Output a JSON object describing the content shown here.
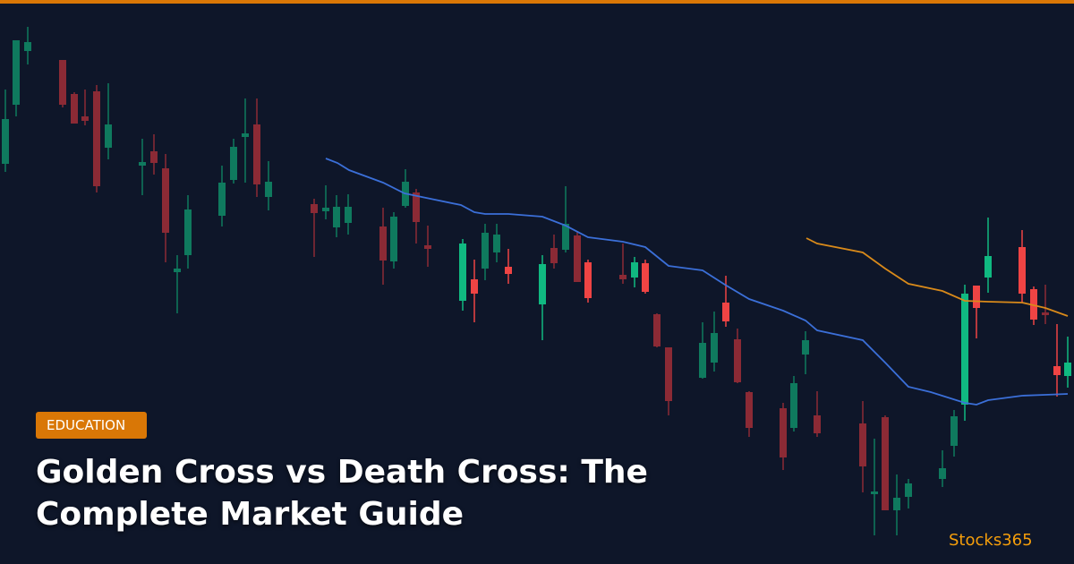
{
  "badge": "EDUCATION",
  "title_lines": [
    "Golden Cross vs Death Cross: The",
    "Complete Market Guide"
  ],
  "brand": "Stocks365"
}
